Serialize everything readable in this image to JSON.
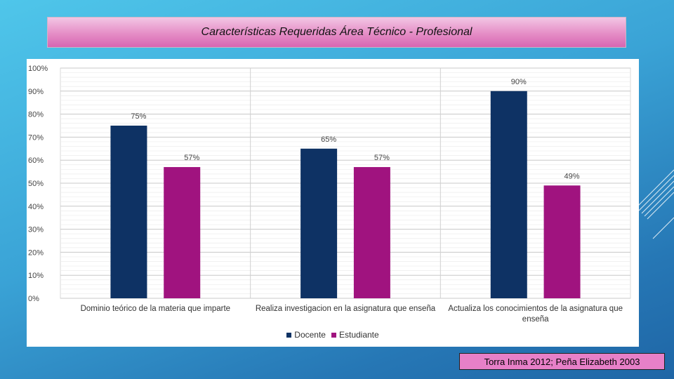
{
  "title": "Características Requeridas Área Técnico - Profesional",
  "citation": "Torra Inma 2012; Peña Elizabeth  2003",
  "colors": {
    "docente": "#0e3264",
    "estudiante": "#a0137f"
  },
  "chart_data": {
    "type": "bar",
    "title": "Características Requeridas Área Técnico - Profesional",
    "categories": [
      [
        "Dominio teórico de la materia que imparte"
      ],
      [
        "Realiza investigacion en la asignatura que enseña"
      ],
      [
        "Actualiza los conocimientos de la asignatura que",
        "enseña"
      ]
    ],
    "series": [
      {
        "name": "Docente",
        "values": [
          75,
          65,
          90
        ],
        "labels": [
          "75%",
          "65%",
          "90%"
        ]
      },
      {
        "name": "Estudiante",
        "values": [
          57,
          57,
          49
        ],
        "labels": [
          "57%",
          "57%",
          "49%"
        ]
      }
    ],
    "yticks": [
      "0%",
      "10%",
      "20%",
      "30%",
      "40%",
      "50%",
      "60%",
      "70%",
      "80%",
      "90%",
      "100%"
    ],
    "ylim": [
      0,
      100
    ],
    "grid": true,
    "legend_position": "bottom"
  }
}
